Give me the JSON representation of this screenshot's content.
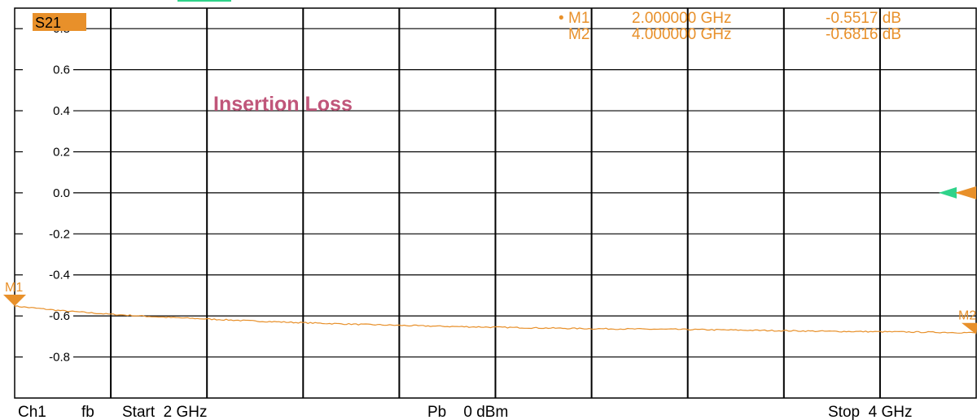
{
  "trace_label": "S21",
  "annotation": "Insertion Loss",
  "markers": [
    {
      "name": "M1",
      "dot": "•",
      "freq": "2.000000 GHz",
      "value": "-0.5517 dB",
      "x": 2.0,
      "y": -0.5517
    },
    {
      "name": "M2",
      "dot": "",
      "freq": "4.000000 GHz",
      "value": "-0.6816 dB",
      "x": 4.0,
      "y": -0.6816
    }
  ],
  "footer": {
    "channel": "Ch1",
    "fb": "fb",
    "start": "Start  2 GHz",
    "power": "Pb    0 dBm",
    "stop": "Stop  4 GHz"
  },
  "colors": {
    "trace": "#e8902a",
    "grid": "#000000",
    "badge": "#e8902a",
    "reference_marker": "#2fd38a",
    "annotation": "#c0567a"
  },
  "chart_data": {
    "type": "line",
    "title": "",
    "xlabel": "",
    "ylabel": "",
    "xlim": [
      2.0,
      4.0
    ],
    "ylim": [
      -1.0,
      0.9
    ],
    "x_divisions": 10,
    "yticks": [
      0.8,
      0.6,
      0.4,
      0.2,
      0.0,
      -0.2,
      -0.4,
      -0.6,
      -0.8
    ],
    "ytick_labels": [
      "0.8",
      "0.6",
      "0.4",
      "0.2",
      "0.0",
      "-0.2",
      "-0.4",
      "-0.6",
      "-0.8"
    ],
    "reference_level": 0.0,
    "grid": true,
    "series": [
      {
        "x": [
          2.0,
          2.1,
          2.2,
          2.3,
          2.4,
          2.5,
          2.6,
          2.7,
          2.8,
          2.9,
          3.0,
          3.1,
          3.2,
          3.3,
          3.4,
          3.5,
          3.6,
          3.7,
          3.8,
          3.9,
          4.0
        ],
        "y": [
          -0.552,
          -0.575,
          -0.592,
          -0.605,
          -0.615,
          -0.625,
          -0.633,
          -0.64,
          -0.646,
          -0.651,
          -0.655,
          -0.659,
          -0.662,
          -0.664,
          -0.666,
          -0.669,
          -0.672,
          -0.675,
          -0.677,
          -0.679,
          -0.682
        ]
      }
    ]
  }
}
